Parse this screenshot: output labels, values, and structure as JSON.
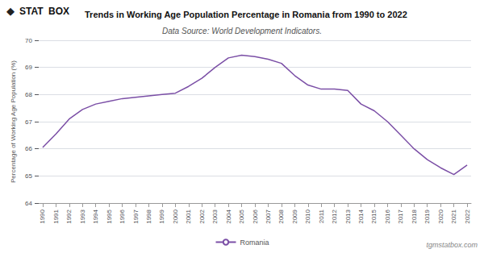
{
  "chart_data": {
    "type": "line",
    "title": "Trends in Working Age Population Percentage in Romania from 1990 to 2022",
    "subtitle": "Data Source: World Development Indicators.",
    "ylabel": "Percentage of Working Age Population (%)",
    "annotations": [
      "◆",
      "STAT",
      "BOX",
      "tgmstatbox.com"
    ],
    "x": [
      1990,
      1991,
      1992,
      1993,
      1994,
      1995,
      1996,
      1997,
      1998,
      1999,
      2000,
      2001,
      2002,
      2003,
      2004,
      2005,
      2006,
      2007,
      2008,
      2009,
      2010,
      2011,
      2012,
      2013,
      2014,
      2015,
      2016,
      2017,
      2018,
      2019,
      2020,
      2021,
      2022
    ],
    "series": [
      {
        "name": "Romania",
        "color": "#7b4fa6",
        "values": [
          66.05,
          66.55,
          67.1,
          67.45,
          67.65,
          67.75,
          67.85,
          67.9,
          67.95,
          68.0,
          68.05,
          68.3,
          68.6,
          69.0,
          69.35,
          69.45,
          69.4,
          69.3,
          69.15,
          68.7,
          68.35,
          68.2,
          68.2,
          68.15,
          67.65,
          67.4,
          67.0,
          66.5,
          66.0,
          65.6,
          65.3,
          65.05,
          65.4
        ]
      }
    ],
    "xlim": [
      1989.7,
      2022.3
    ],
    "xticks": [
      1990,
      1991,
      1992,
      1993,
      1994,
      1995,
      1996,
      1997,
      1998,
      1999,
      2000,
      2001,
      2002,
      2003,
      2004,
      2005,
      2006,
      2007,
      2008,
      2009,
      2010,
      2011,
      2012,
      2013,
      2014,
      2015,
      2016,
      2017,
      2018,
      2019,
      2020,
      2021,
      2022
    ],
    "ylim": [
      64,
      70
    ],
    "yticks": [
      64,
      65,
      66,
      67,
      68,
      69,
      70
    ],
    "grid": true,
    "legend": "bottom"
  }
}
